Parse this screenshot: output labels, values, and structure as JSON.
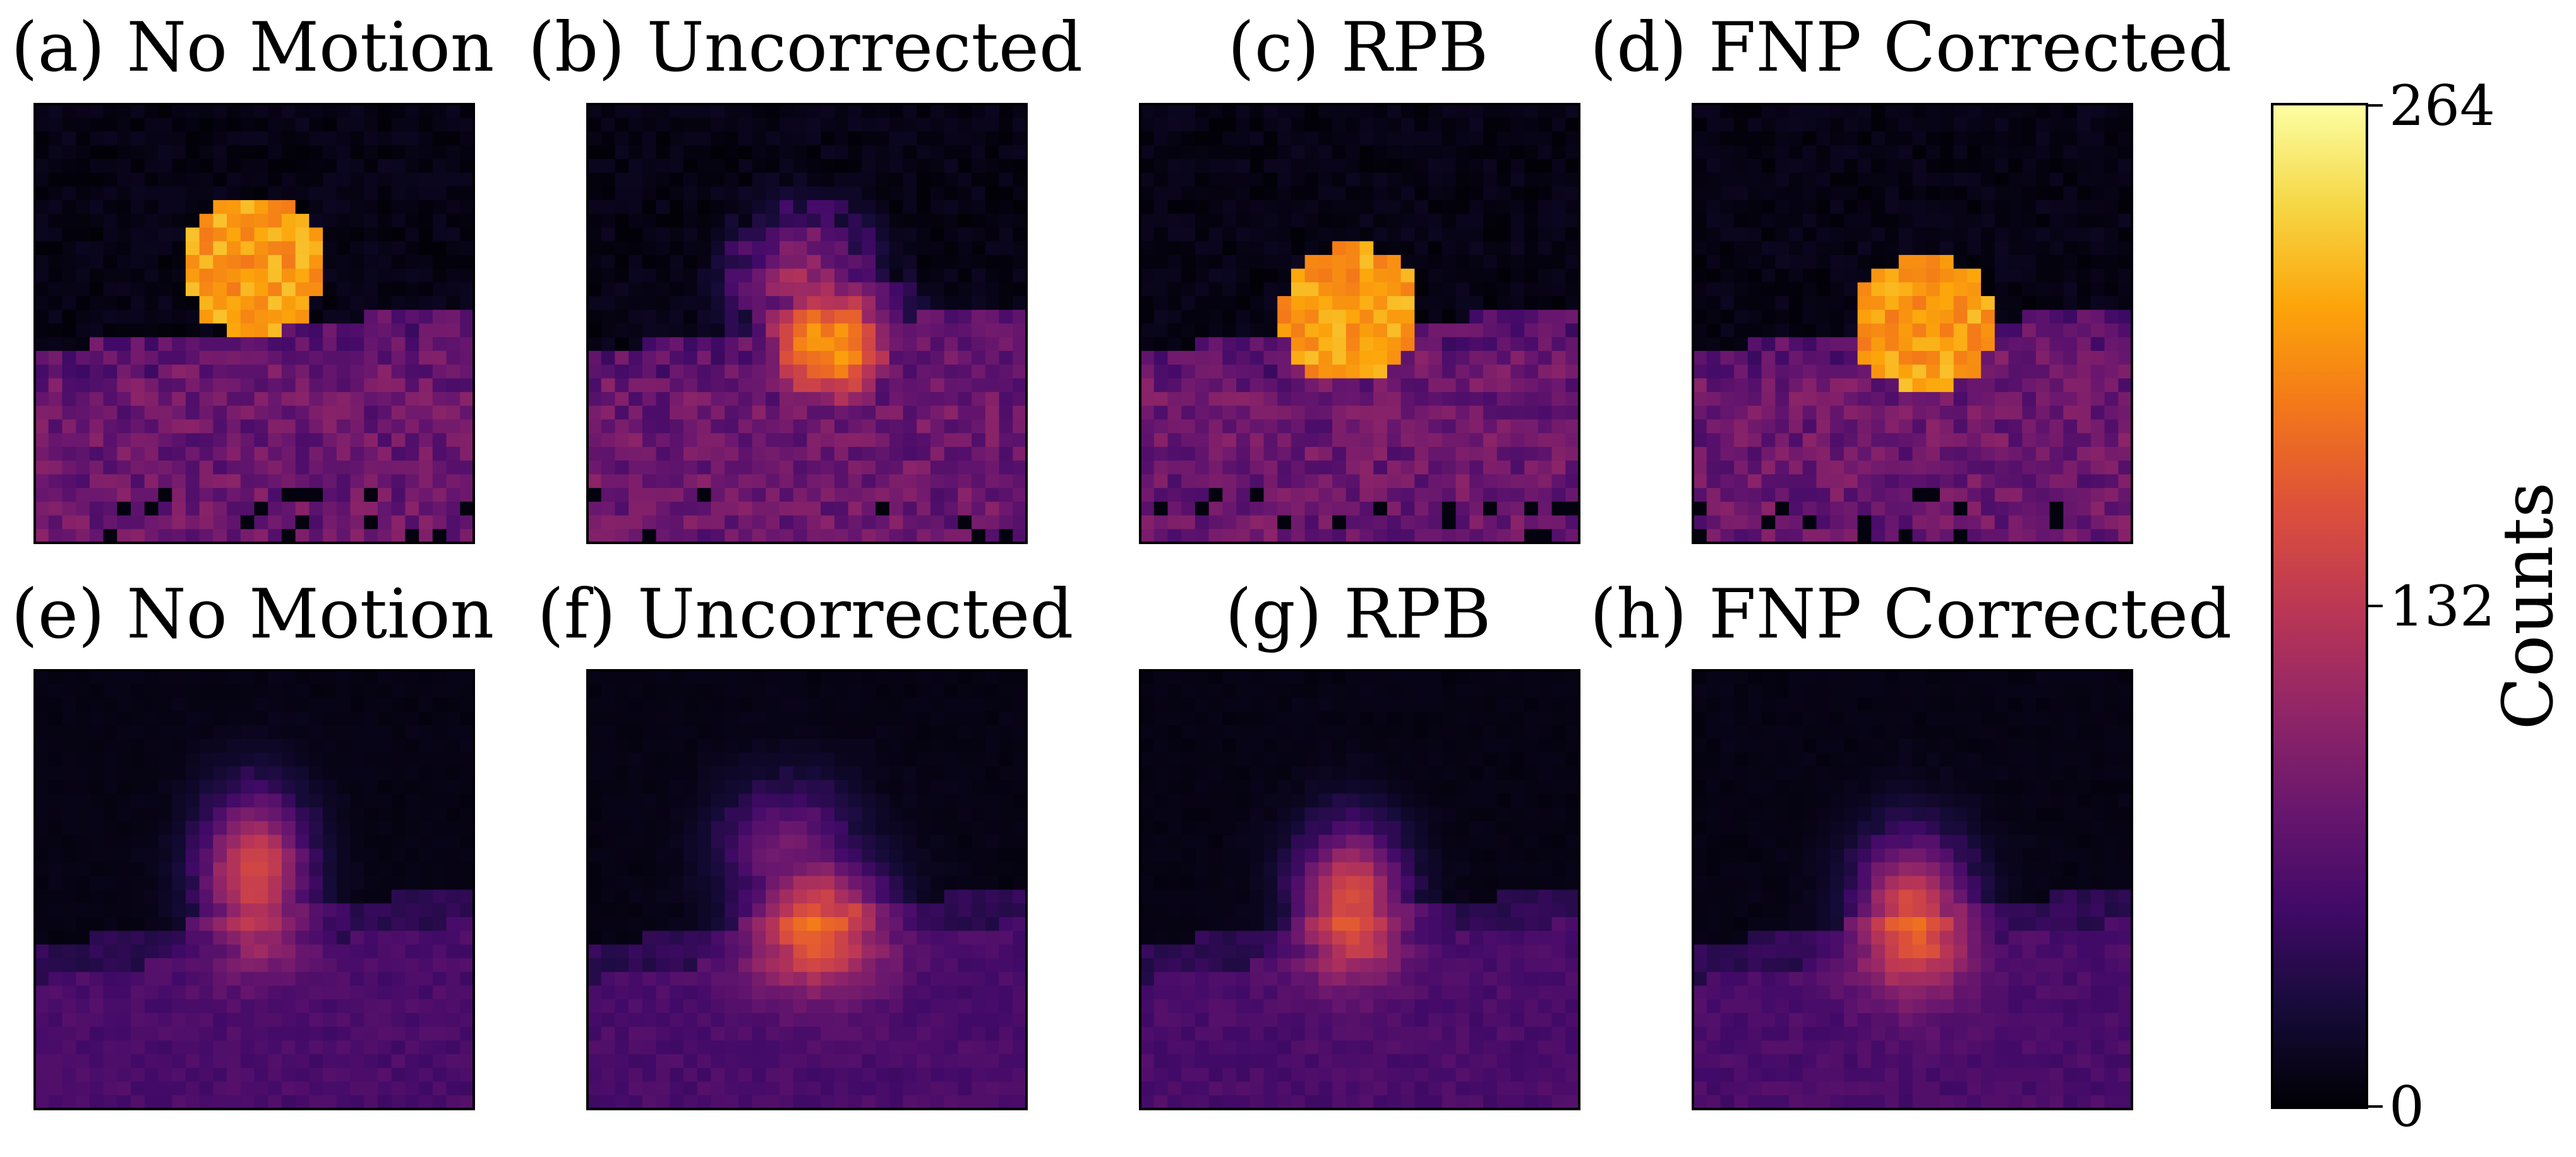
{
  "chart_data": {
    "type": "heatmap",
    "grid_size": 32,
    "colormap": "inferno",
    "value_range": [
      0,
      264
    ],
    "panels": [
      {
        "title": "(a) No Motion",
        "image": "blocky",
        "shape": "circle",
        "cx": 0.5,
        "cy": 0.37,
        "r": 0.16,
        "smooth": false
      },
      {
        "title": "(b) Uncorrected",
        "image": "blocky",
        "shape": "motion",
        "cx": 0.55,
        "cy": 0.55,
        "r": 0.18,
        "smooth": false
      },
      {
        "title": "(c) RPB",
        "image": "blocky",
        "shape": "circle",
        "cx": 0.48,
        "cy": 0.48,
        "r": 0.16,
        "smooth": false
      },
      {
        "title": "(d) FNP Corrected",
        "image": "blocky",
        "shape": "circle",
        "cx": 0.53,
        "cy": 0.5,
        "r": 0.16,
        "smooth": false
      },
      {
        "title": "(e) No Motion",
        "image": "blurred",
        "shape": "ellipse",
        "cx": 0.5,
        "cy": 0.46,
        "rx": 0.15,
        "ry": 0.22,
        "smooth": true
      },
      {
        "title": "(f) Uncorrected",
        "image": "blurred",
        "shape": "motion",
        "cx": 0.52,
        "cy": 0.56,
        "r": 0.17,
        "smooth": true
      },
      {
        "title": "(g) RPB",
        "image": "blurred",
        "shape": "ellipse",
        "cx": 0.48,
        "cy": 0.52,
        "rx": 0.15,
        "ry": 0.2,
        "smooth": true
      },
      {
        "title": "(h) FNP Corrected",
        "image": "blurred",
        "shape": "ellipse",
        "cx": 0.5,
        "cy": 0.55,
        "rx": 0.16,
        "ry": 0.21,
        "smooth": true
      }
    ],
    "colorbar": {
      "label": "Counts",
      "ticks": [
        0,
        132,
        264
      ],
      "tick_labels": [
        "0",
        "132",
        "264"
      ]
    }
  }
}
